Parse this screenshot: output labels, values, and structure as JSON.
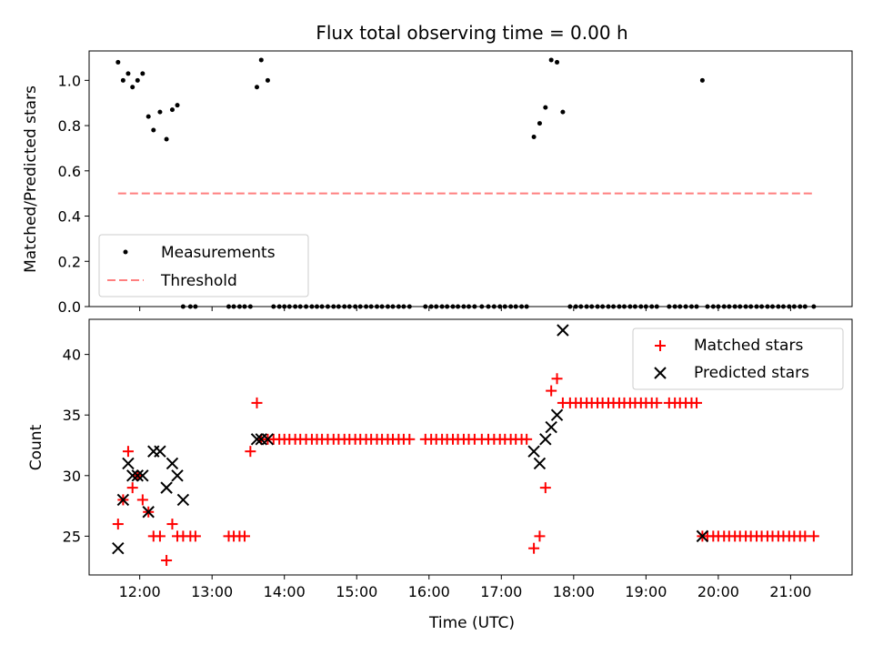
{
  "chart_data": [
    {
      "type": "scatter",
      "title": "Flux total observing time = 0.00 h",
      "xlabel": "",
      "ylabel": "Matched/Predicted stars",
      "ylim": [
        0,
        1.13
      ],
      "xlim": [
        11.3,
        21.85
      ],
      "y_ticks": [
        0.0,
        0.2,
        0.4,
        0.6,
        0.8,
        1.0
      ],
      "y_tick_labels": [
        "0.0",
        "0.2",
        "0.4",
        "0.6",
        "0.8",
        "1.0"
      ],
      "legend": {
        "placement": "lower-left",
        "measurements_label": "Measurements",
        "threshold_label": "Threshold"
      },
      "threshold": {
        "value": 0.5,
        "x_start": 11.7,
        "x_end": 21.3,
        "color": "#ff7f7f"
      },
      "measurements": {
        "color": "#000000",
        "x": [
          11.7,
          11.77,
          11.84,
          11.9,
          11.97,
          12.04,
          12.12,
          12.19,
          12.28,
          12.37,
          12.45,
          12.52,
          12.6,
          12.7,
          12.77,
          13.23,
          13.3,
          13.38,
          13.45,
          13.53,
          13.62,
          13.68,
          13.77,
          13.85,
          13.93,
          14.0,
          14.07,
          14.15,
          14.22,
          14.3,
          14.38,
          14.45,
          14.52,
          14.6,
          14.68,
          14.75,
          14.83,
          14.9,
          14.98,
          15.05,
          15.13,
          15.2,
          15.28,
          15.35,
          15.43,
          15.5,
          15.58,
          15.65,
          15.73,
          15.95,
          16.03,
          16.1,
          16.18,
          16.25,
          16.33,
          16.4,
          16.48,
          16.55,
          16.63,
          16.73,
          16.82,
          16.9,
          16.98,
          17.05,
          17.13,
          17.2,
          17.28,
          17.35,
          17.45,
          17.53,
          17.61,
          17.69,
          17.77,
          17.85,
          17.95,
          18.03,
          18.1,
          18.18,
          18.25,
          18.33,
          18.4,
          18.48,
          18.55,
          18.63,
          18.7,
          18.78,
          18.85,
          18.93,
          19.0,
          19.08,
          19.15,
          19.32,
          19.4,
          19.47,
          19.55,
          19.63,
          19.7,
          19.78,
          19.85,
          19.93,
          20.0,
          20.08,
          20.15,
          20.23,
          20.3,
          20.38,
          20.45,
          20.53,
          20.6,
          20.68,
          20.75,
          20.83,
          20.9,
          20.98,
          21.05,
          21.13,
          21.2,
          21.32
        ],
        "y": [
          1.08,
          1.0,
          1.03,
          0.97,
          1.0,
          1.03,
          0.84,
          0.78,
          0.86,
          0.74,
          0.87,
          0.89,
          0.0,
          0.0,
          0.0,
          0.0,
          0.0,
          0.0,
          0.0,
          0.0,
          0.97,
          1.09,
          1.0,
          0.0,
          0.0,
          0.0,
          0.0,
          0.0,
          0.0,
          0.0,
          0.0,
          0.0,
          0.0,
          0.0,
          0.0,
          0.0,
          0.0,
          0.0,
          0.0,
          0.0,
          0.0,
          0.0,
          0.0,
          0.0,
          0.0,
          0.0,
          0.0,
          0.0,
          0.0,
          0.0,
          0.0,
          0.0,
          0.0,
          0.0,
          0.0,
          0.0,
          0.0,
          0.0,
          0.0,
          0.0,
          0.0,
          0.0,
          0.0,
          0.0,
          0.0,
          0.0,
          0.0,
          0.0,
          0.75,
          0.81,
          0.88,
          1.09,
          1.08,
          0.86,
          0.0,
          0.0,
          0.0,
          0.0,
          0.0,
          0.0,
          0.0,
          0.0,
          0.0,
          0.0,
          0.0,
          0.0,
          0.0,
          0.0,
          0.0,
          0.0,
          0.0,
          0.0,
          0.0,
          0.0,
          0.0,
          0.0,
          0.0,
          1.0,
          0.0,
          0.0,
          0.0,
          0.0,
          0.0,
          0.0,
          0.0,
          0.0,
          0.0,
          0.0,
          0.0,
          0.0,
          0.0,
          0.0,
          0.0,
          0.0,
          0.0,
          0.0,
          0.0,
          0.0
        ]
      }
    },
    {
      "type": "scatter",
      "title": "",
      "xlabel": "Time (UTC)",
      "ylabel": "Count",
      "ylim": [
        21.8,
        42.9
      ],
      "xlim": [
        11.3,
        21.85
      ],
      "y_ticks": [
        25,
        30,
        35,
        40
      ],
      "y_tick_labels": [
        "25",
        "30",
        "35",
        "40"
      ],
      "x_ticks": [
        12,
        13,
        14,
        15,
        16,
        17,
        18,
        19,
        20,
        21
      ],
      "x_tick_labels": [
        "12:00",
        "13:00",
        "14:00",
        "15:00",
        "16:00",
        "17:00",
        "18:00",
        "19:00",
        "20:00",
        "21:00"
      ],
      "legend": {
        "placement": "top-right",
        "matched_label": "Matched stars",
        "predicted_label": "Predicted stars"
      },
      "series": [
        {
          "name": "Matched stars",
          "marker": "+",
          "color": "#ff0000",
          "x": [
            11.7,
            11.77,
            11.84,
            11.9,
            11.97,
            12.04,
            12.12,
            12.19,
            12.28,
            12.37,
            12.45,
            12.52,
            12.6,
            12.7,
            12.77,
            13.23,
            13.3,
            13.38,
            13.45,
            13.53,
            13.62,
            13.68,
            13.77,
            13.85,
            13.93,
            14.0,
            14.07,
            14.15,
            14.22,
            14.3,
            14.38,
            14.45,
            14.52,
            14.6,
            14.68,
            14.75,
            14.83,
            14.9,
            14.98,
            15.05,
            15.13,
            15.2,
            15.28,
            15.35,
            15.43,
            15.5,
            15.58,
            15.65,
            15.73,
            15.95,
            16.03,
            16.1,
            16.18,
            16.25,
            16.33,
            16.4,
            16.48,
            16.55,
            16.63,
            16.73,
            16.82,
            16.9,
            16.98,
            17.05,
            17.13,
            17.2,
            17.28,
            17.35,
            17.45,
            17.53,
            17.61,
            17.69,
            17.77,
            17.85,
            17.95,
            18.03,
            18.1,
            18.18,
            18.25,
            18.33,
            18.4,
            18.48,
            18.55,
            18.63,
            18.7,
            18.78,
            18.85,
            18.93,
            19.0,
            19.08,
            19.15,
            19.32,
            19.4,
            19.47,
            19.55,
            19.63,
            19.7,
            19.78,
            19.85,
            19.93,
            20.0,
            20.08,
            20.15,
            20.23,
            20.3,
            20.38,
            20.45,
            20.53,
            20.6,
            20.68,
            20.75,
            20.83,
            20.9,
            20.98,
            21.05,
            21.13,
            21.2,
            21.32
          ],
          "y": [
            26,
            28,
            32,
            29,
            30,
            28,
            27,
            25,
            25,
            23,
            26,
            25,
            25,
            25,
            25,
            25,
            25,
            25,
            25,
            32,
            36,
            33,
            33,
            33,
            33,
            33,
            33,
            33,
            33,
            33,
            33,
            33,
            33,
            33,
            33,
            33,
            33,
            33,
            33,
            33,
            33,
            33,
            33,
            33,
            33,
            33,
            33,
            33,
            33,
            33,
            33,
            33,
            33,
            33,
            33,
            33,
            33,
            33,
            33,
            33,
            33,
            33,
            33,
            33,
            33,
            33,
            33,
            33,
            24,
            25,
            29,
            37,
            38,
            36,
            36,
            36,
            36,
            36,
            36,
            36,
            36,
            36,
            36,
            36,
            36,
            36,
            36,
            36,
            36,
            36,
            36,
            36,
            36,
            36,
            36,
            36,
            36,
            25,
            25,
            25,
            25,
            25,
            25,
            25,
            25,
            25,
            25,
            25,
            25,
            25,
            25,
            25,
            25,
            25,
            25,
            25,
            25,
            25
          ]
        },
        {
          "name": "Predicted stars",
          "marker": "x",
          "color": "#000000",
          "x": [
            11.7,
            11.77,
            11.84,
            11.9,
            11.97,
            12.04,
            12.12,
            12.19,
            12.28,
            12.37,
            12.45,
            12.52,
            12.6,
            13.62,
            13.68,
            13.77,
            17.45,
            17.53,
            17.61,
            17.69,
            17.77,
            17.85,
            19.78
          ],
          "y": [
            24,
            28,
            31,
            30,
            30,
            30,
            27,
            32,
            32,
            29,
            31,
            30,
            28,
            33,
            33,
            33,
            32,
            31,
            33,
            34,
            35,
            42,
            25
          ]
        }
      ]
    }
  ]
}
